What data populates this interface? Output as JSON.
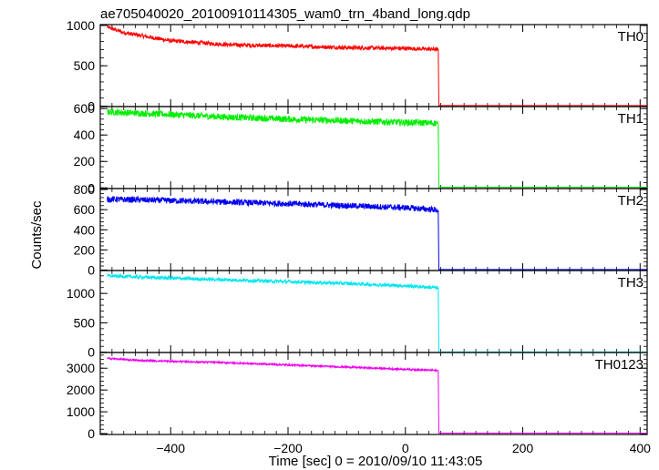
{
  "title": "ae705040020_20100910114305_wam0_trn_4band_long.qdp",
  "chart_data": {
    "type": "line",
    "title": "ae705040020_20100910114305_wam0_trn_4band_long.qdp",
    "xlabel": "Time [sec] 0 = 2010/09/10 11:43:05",
    "ylabel": "Counts/sec",
    "xlim": [
      -520,
      412
    ],
    "xticks": [
      -400,
      -200,
      0,
      200,
      400
    ],
    "grid": false,
    "shared_x_axis": true,
    "cutoff_time": 57,
    "series": [
      {
        "name": "TH0",
        "color": "#ff0000",
        "ylim": [
          -5,
          1010
        ],
        "yticks": [
          0,
          500,
          1000
        ],
        "noise": 25,
        "values": [
          [
            -508,
            980
          ],
          [
            -480,
            910
          ],
          [
            -400,
            810
          ],
          [
            -300,
            760
          ],
          [
            -200,
            745
          ],
          [
            -100,
            725
          ],
          [
            0,
            715
          ],
          [
            50,
            705
          ],
          [
            55,
            700
          ],
          [
            57,
            8
          ],
          [
            412,
            8
          ]
        ]
      },
      {
        "name": "TH1",
        "color": "#00ee00",
        "ylim": [
          -5,
          615
        ],
        "yticks": [
          0,
          200,
          400,
          600
        ],
        "noise": 25,
        "values": [
          [
            -508,
            575
          ],
          [
            -400,
            555
          ],
          [
            -300,
            535
          ],
          [
            -200,
            520
          ],
          [
            -100,
            508
          ],
          [
            0,
            495
          ],
          [
            50,
            490
          ],
          [
            55,
            485
          ],
          [
            57,
            5
          ],
          [
            412,
            5
          ]
        ]
      },
      {
        "name": "TH2",
        "color": "#0000ee",
        "ylim": [
          -5,
          810
        ],
        "yticks": [
          0,
          200,
          400,
          600,
          800
        ],
        "noise": 30,
        "values": [
          [
            -508,
            705
          ],
          [
            -400,
            690
          ],
          [
            -300,
            675
          ],
          [
            -200,
            660
          ],
          [
            -100,
            640
          ],
          [
            0,
            620
          ],
          [
            50,
            600
          ],
          [
            55,
            590
          ],
          [
            57,
            5
          ],
          [
            412,
            5
          ]
        ]
      },
      {
        "name": "TH3",
        "color": "#00e6ee",
        "ylim": [
          -5,
          1390
        ],
        "yticks": [
          0,
          500,
          1000
        ],
        "noise": 30,
        "values": [
          [
            -508,
            1300
          ],
          [
            -400,
            1260
          ],
          [
            -300,
            1230
          ],
          [
            -200,
            1200
          ],
          [
            -100,
            1170
          ],
          [
            0,
            1130
          ],
          [
            50,
            1100
          ],
          [
            55,
            1090
          ],
          [
            57,
            5
          ],
          [
            412,
            5
          ]
        ]
      },
      {
        "name": "TH0123",
        "color": "#ee00ee",
        "ylim": [
          -40,
          3720
        ],
        "yticks": [
          0,
          1000,
          2000,
          3000
        ],
        "noise": 40,
        "values": [
          [
            -508,
            3450
          ],
          [
            -450,
            3350
          ],
          [
            -300,
            3250
          ],
          [
            -200,
            3150
          ],
          [
            -100,
            3050
          ],
          [
            0,
            2950
          ],
          [
            50,
            2900
          ],
          [
            55,
            2880
          ],
          [
            57,
            20
          ],
          [
            412,
            20
          ]
        ]
      }
    ]
  }
}
